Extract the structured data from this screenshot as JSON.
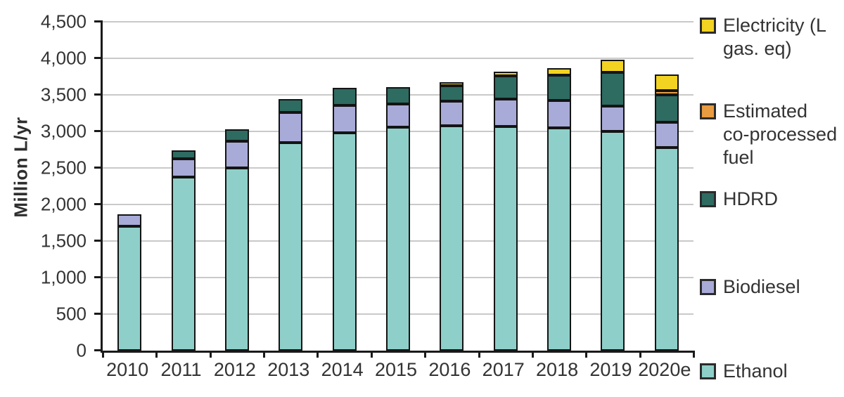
{
  "chart_data": {
    "type": "bar",
    "stacked": true,
    "ylabel": "Million L/yr",
    "ylim": [
      0,
      4500
    ],
    "ytick_step": 500,
    "ytick_labels": [
      "0",
      "500",
      "1,000",
      "1,500",
      "2,000",
      "2,500",
      "3,000",
      "3,500",
      "4,000",
      "4,500"
    ],
    "categories": [
      "2010",
      "2011",
      "2012",
      "2013",
      "2014",
      "2015",
      "2016",
      "2017",
      "2018",
      "2019",
      "2020e"
    ],
    "series": [
      {
        "name": "Ethanol",
        "color": "#8FCFC9",
        "values": [
          1700,
          2380,
          2500,
          2850,
          2980,
          3060,
          3080,
          3070,
          3050,
          3000,
          2780
        ]
      },
      {
        "name": "Biodiesel",
        "color": "#A8ABD8",
        "values": [
          165,
          245,
          370,
          410,
          380,
          320,
          335,
          370,
          370,
          350,
          345
        ]
      },
      {
        "name": "HDRD",
        "color": "#2E6B61",
        "values": [
          0,
          120,
          160,
          180,
          235,
          230,
          215,
          320,
          350,
          460,
          375
        ]
      },
      {
        "name": "Estimated co-processed fuel",
        "color": "#E89B40",
        "values": [
          0,
          0,
          0,
          0,
          0,
          0,
          0,
          0,
          0,
          0,
          55
        ]
      },
      {
        "name": "Electricity (L gas. eq)",
        "color": "#F2D322",
        "values": [
          0,
          0,
          0,
          0,
          0,
          0,
          45,
          55,
          100,
          170,
          225
        ]
      }
    ],
    "grid": true,
    "legend": {
      "position": "right",
      "entries": [
        {
          "label": "Electricity (L\ngas. eq)",
          "color": "#F2D322"
        },
        {
          "label": "Estimated\nco-processed\nfuel",
          "color": "#E89B40"
        },
        {
          "label": "HDRD",
          "color": "#2E6B61"
        },
        {
          "label": "Biodiesel",
          "color": "#A8ABD8"
        },
        {
          "label": "Ethanol",
          "color": "#8FCFC9"
        }
      ]
    }
  },
  "style_colors": {
    "axis": "#1a1a1a",
    "gridline": "#c9c9c9",
    "segment_border": "#141414",
    "text": "#333333"
  }
}
